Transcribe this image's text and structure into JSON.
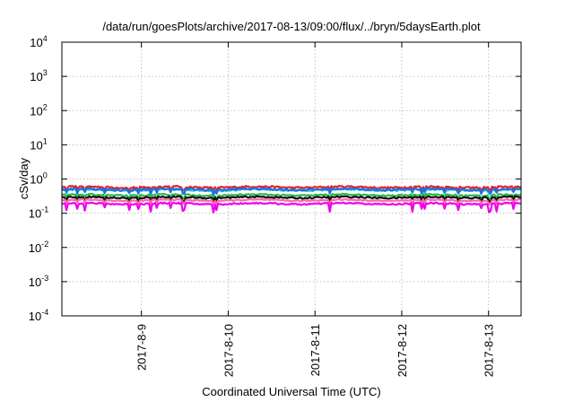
{
  "chart_data": {
    "type": "line",
    "title": "/data/run/goesPlots/archive/2017-08-13/09:00/flux/../bryn/5daysEarth.plot",
    "xlabel": "Coordinated Universal Time (UTC)",
    "ylabel": "cSv/day",
    "y_scale": "log",
    "ylim": [
      0.0001,
      10000
    ],
    "y_ticks": [
      {
        "value": 0.0001,
        "base": "10",
        "exp": "-4"
      },
      {
        "value": 0.001,
        "base": "10",
        "exp": "-3"
      },
      {
        "value": 0.01,
        "base": "10",
        "exp": "-2"
      },
      {
        "value": 0.1,
        "base": "10",
        "exp": "-1"
      },
      {
        "value": 1,
        "base": "10",
        "exp": "0"
      },
      {
        "value": 10,
        "base": "10",
        "exp": "1"
      },
      {
        "value": 100,
        "base": "10",
        "exp": "2"
      },
      {
        "value": 1000,
        "base": "10",
        "exp": "3"
      },
      {
        "value": 10000,
        "base": "10",
        "exp": "4"
      }
    ],
    "xlim": [
      "2017-08-08 02:00",
      "2017-08-13 09:00"
    ],
    "x_ticks": [
      {
        "value": "2017-08-09 00:00",
        "label": "2017-8-9"
      },
      {
        "value": "2017-08-10 00:00",
        "label": "2017-8-10"
      },
      {
        "value": "2017-08-11 00:00",
        "label": "2017-8-11"
      },
      {
        "value": "2017-08-12 00:00",
        "label": "2017-8-12"
      },
      {
        "value": "2017-08-13 00:00",
        "label": "2017-8-13"
      }
    ],
    "grid": true,
    "legend": "none",
    "series": [
      {
        "color": "#e8202a",
        "level": 0.58,
        "amplitude": 0.06,
        "dips": 0.12
      },
      {
        "color": "#27c3df",
        "level": 0.48,
        "amplitude": 0.06,
        "dips": 0.12
      },
      {
        "color": "#1f6fe0",
        "level": 0.5,
        "amplitude": 0.07,
        "dips": 0.14
      },
      {
        "color": "#2ab84a",
        "level": 0.34,
        "amplitude": 0.05,
        "dips": 0.12
      },
      {
        "color": "#111111",
        "level": 0.29,
        "amplitude": 0.05,
        "dips": 0.14
      },
      {
        "color": "#ff66aa",
        "level": 0.24,
        "amplitude": 0.04,
        "dips": 0.14
      },
      {
        "color": "#ee00ee",
        "level": 0.19,
        "amplitude": 0.05,
        "dips": 0.22
      }
    ]
  }
}
